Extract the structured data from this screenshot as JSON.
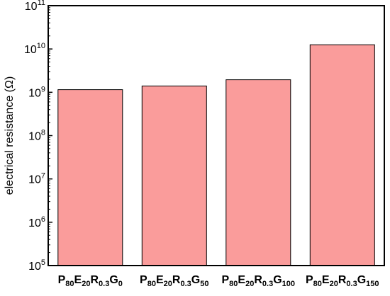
{
  "chart_data": {
    "type": "bar",
    "title": "",
    "xlabel": "",
    "ylabel": "electrical resistance (Ω)",
    "yscale": "log",
    "ylim": [
      100000,
      100000000000
    ],
    "y_ticks": [
      {
        "value": 100000,
        "base": "10",
        "exp": "5"
      },
      {
        "value": 1000000,
        "base": "10",
        "exp": "6"
      },
      {
        "value": 10000000,
        "base": "10",
        "exp": "7"
      },
      {
        "value": 100000000,
        "base": "10",
        "exp": "8"
      },
      {
        "value": 1000000000,
        "base": "10",
        "exp": "9"
      },
      {
        "value": 10000000000,
        "base": "10",
        "exp": "10"
      },
      {
        "value": 100000000000,
        "base": "10",
        "exp": "11"
      }
    ],
    "categories": [
      {
        "parts": [
          {
            "t": "P"
          },
          {
            "t": "80",
            "sub": true
          },
          {
            "t": "E"
          },
          {
            "t": "20",
            "sub": true
          },
          {
            "t": "R"
          },
          {
            "t": "0.3",
            "sub": true
          },
          {
            "t": "G"
          },
          {
            "t": "0",
            "sub": true
          }
        ]
      },
      {
        "parts": [
          {
            "t": "P"
          },
          {
            "t": "80",
            "sub": true
          },
          {
            "t": "E"
          },
          {
            "t": "20",
            "sub": true
          },
          {
            "t": "R"
          },
          {
            "t": "0.3",
            "sub": true
          },
          {
            "t": "G"
          },
          {
            "t": "50",
            "sub": true
          }
        ]
      },
      {
        "parts": [
          {
            "t": "P"
          },
          {
            "t": "80",
            "sub": true
          },
          {
            "t": "E"
          },
          {
            "t": "20",
            "sub": true
          },
          {
            "t": "R"
          },
          {
            "t": "0.3",
            "sub": true
          },
          {
            "t": "G"
          },
          {
            "t": "100",
            "sub": true
          }
        ]
      },
      {
        "parts": [
          {
            "t": "P"
          },
          {
            "t": "80",
            "sub": true
          },
          {
            "t": "E"
          },
          {
            "t": "20",
            "sub": true
          },
          {
            "t": "R"
          },
          {
            "t": "0.3",
            "sub": true
          },
          {
            "t": "G"
          },
          {
            "t": "150",
            "sub": true
          }
        ]
      }
    ],
    "values": [
      1150000000,
      1400000000,
      1950000000,
      12500000000
    ],
    "grid": false,
    "legend": "none",
    "bar_fill": "#fa9c9b",
    "bar_stroke": "#000000"
  }
}
